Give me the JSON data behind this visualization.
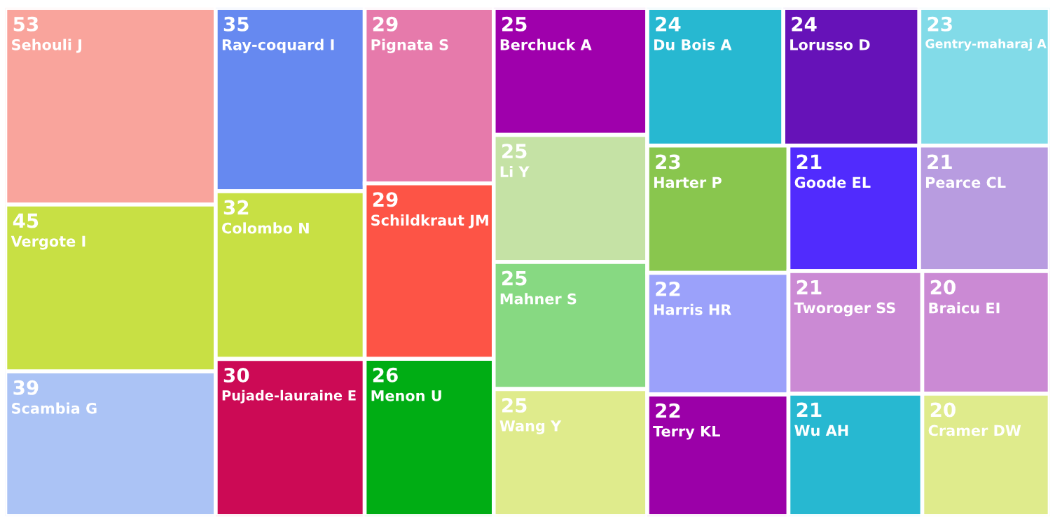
{
  "chart_data": {
    "type": "other",
    "data_labels": true,
    "categories": [
      "Sehouli J",
      "Vergote I",
      "Scambia G",
      "Ray-coquard I",
      "Colombo N",
      "Pujade-lauraine E",
      "Pignata S",
      "Schildkraut JM",
      "Menon U",
      "Berchuck A",
      "Li Y",
      "Mahner S",
      "Wang Y",
      "Du Bois A",
      "Lorusso D",
      "Gentry-maharaj A",
      "Harter P",
      "Harris HR",
      "Terry KL",
      "Goode EL",
      "Pearce CL",
      "Tworoger SS",
      "Wu AH",
      "Braicu EI",
      "Cramer DW"
    ],
    "values": [
      53,
      45,
      39,
      35,
      32,
      30,
      29,
      29,
      26,
      25,
      25,
      25,
      25,
      24,
      24,
      23,
      23,
      22,
      22,
      21,
      21,
      21,
      21,
      20,
      20
    ],
    "colors": [
      "#f9a49c",
      "#c8e044",
      "#abc3f5",
      "#6689f0",
      "#c8e044",
      "#cc0a55",
      "#e67aab",
      "#fd5446",
      "#00ad14",
      "#9f00ac",
      "#c5e2a5",
      "#87d982",
      "#dfeb8c",
      "#27b8d1",
      "#6612b8",
      "#82dbe8",
      "#89c64e",
      "#9ba1fa",
      "#9b00a8",
      "#512bfd",
      "#b89ce0",
      "#cb8ad4",
      "#27b8d1",
      "#cb8ad4",
      "#dfeb8c"
    ]
  }
}
